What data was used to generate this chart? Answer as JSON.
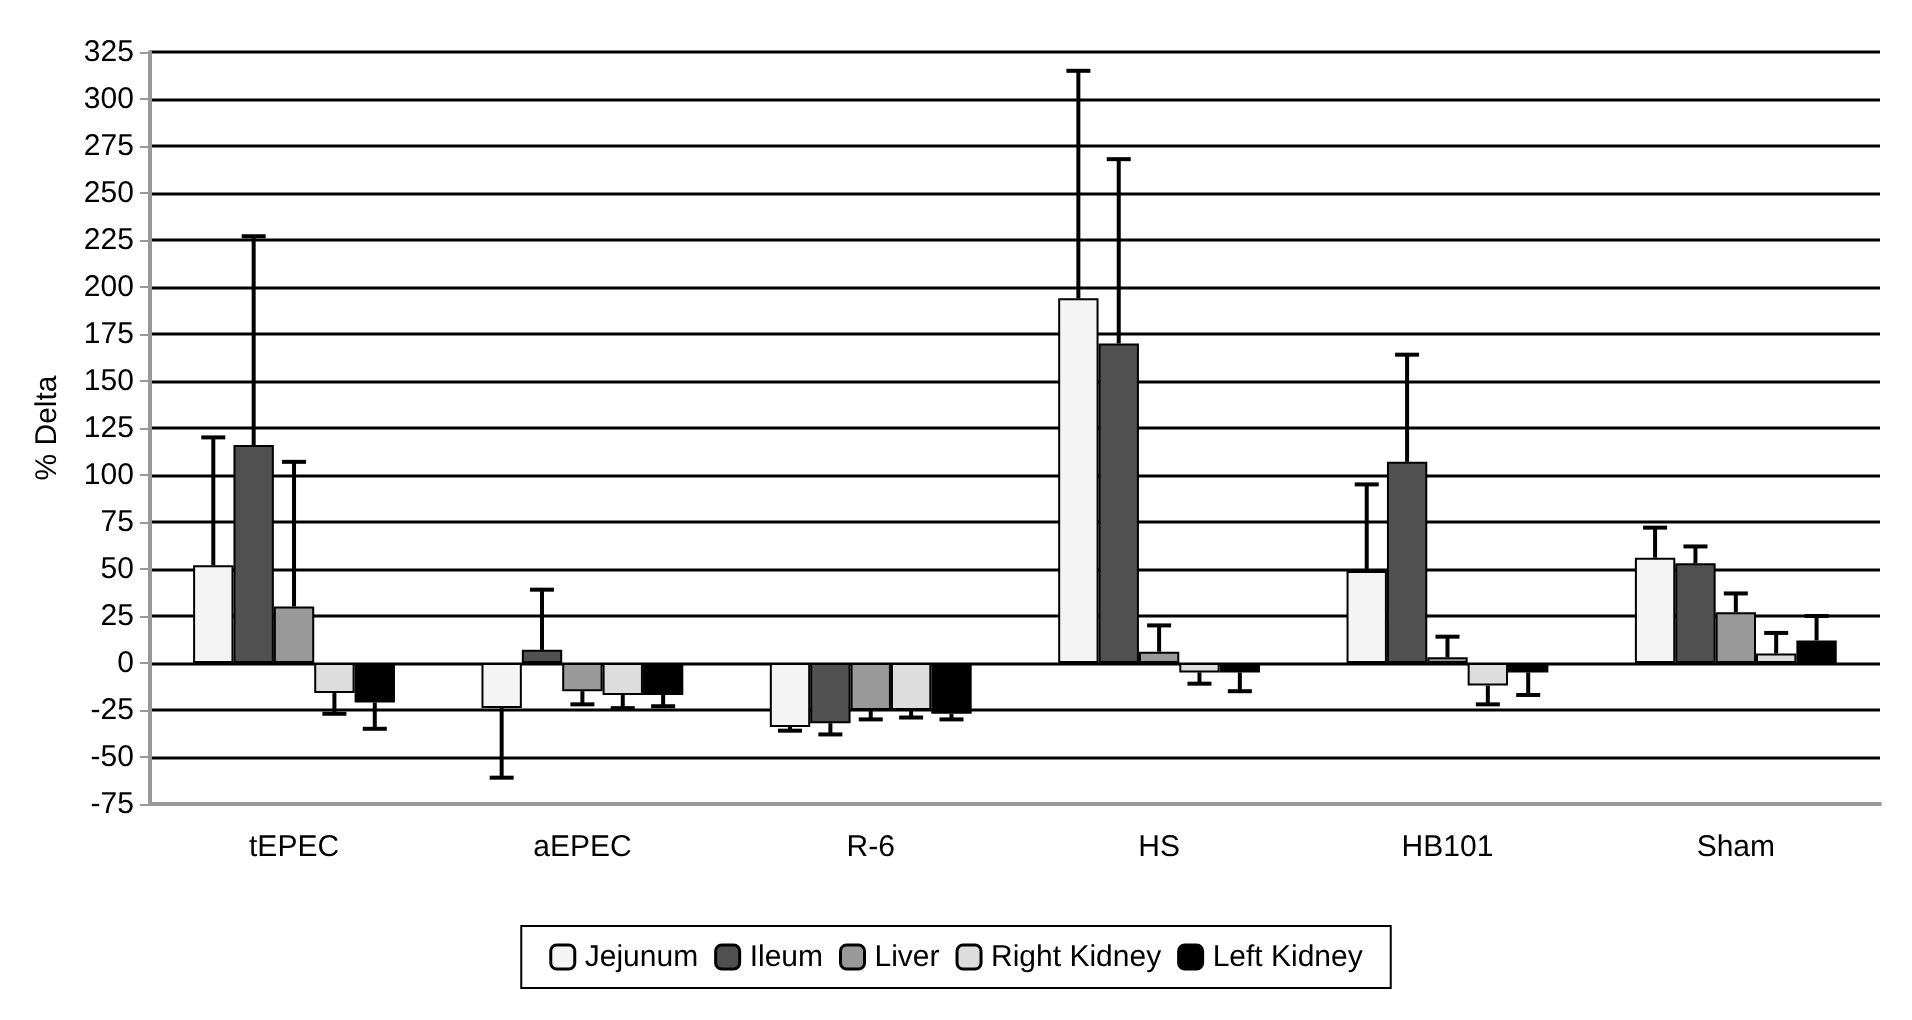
{
  "chart_data": {
    "type": "bar",
    "ylabel": "% Delta",
    "categories": [
      "tEPEC",
      "aEPEC",
      "R-6",
      "HS",
      "HB101",
      "Sham"
    ],
    "series": [
      {
        "name": "Jejunum",
        "color": "#f4f4f4",
        "values": [
          52,
          -24,
          -34,
          194,
          49,
          56
        ],
        "errors": [
          [
            52,
            120
          ],
          [
            -61,
            -24
          ],
          [
            -36,
            -34
          ],
          [
            194,
            315
          ],
          [
            49,
            95
          ],
          [
            56,
            72
          ]
        ]
      },
      {
        "name": "Ileum",
        "color": "#505050",
        "values": [
          116,
          7,
          -32,
          170,
          107,
          53
        ],
        "errors": [
          [
            116,
            227
          ],
          [
            7,
            39
          ],
          [
            -38,
            -32
          ],
          [
            170,
            268
          ],
          [
            107,
            164
          ],
          [
            53,
            62
          ]
        ]
      },
      {
        "name": "Liver",
        "color": "#999999",
        "values": [
          30,
          -15,
          -25,
          6,
          3,
          27
        ],
        "errors": [
          [
            30,
            107
          ],
          [
            -22,
            -15
          ],
          [
            -30,
            -25
          ],
          [
            6,
            20
          ],
          [
            3,
            14
          ],
          [
            27,
            37
          ]
        ]
      },
      {
        "name": "Right Kidney",
        "color": "#dddddd",
        "values": [
          -16,
          -17,
          -25,
          -5,
          -12,
          5
        ],
        "errors": [
          [
            -27,
            -16
          ],
          [
            -24,
            -17
          ],
          [
            -29,
            -25
          ],
          [
            -11,
            -5
          ],
          [
            -22,
            -12
          ],
          [
            5,
            16
          ]
        ]
      },
      {
        "name": "Left Kidney",
        "color": "#000000",
        "values": [
          -21,
          -17,
          -27,
          -5,
          -5,
          12
        ],
        "errors": [
          [
            -35,
            -21
          ],
          [
            -23,
            -17
          ],
          [
            -30,
            -27
          ],
          [
            -15,
            -5
          ],
          [
            -17,
            -5
          ],
          [
            12,
            25
          ]
        ]
      }
    ],
    "ylim": [
      -75,
      325
    ],
    "yticks": [
      -75,
      -50,
      -25,
      0,
      25,
      50,
      75,
      100,
      125,
      150,
      175,
      200,
      225,
      250,
      275,
      300,
      325
    ],
    "grid": "y",
    "legend": "bottom"
  }
}
